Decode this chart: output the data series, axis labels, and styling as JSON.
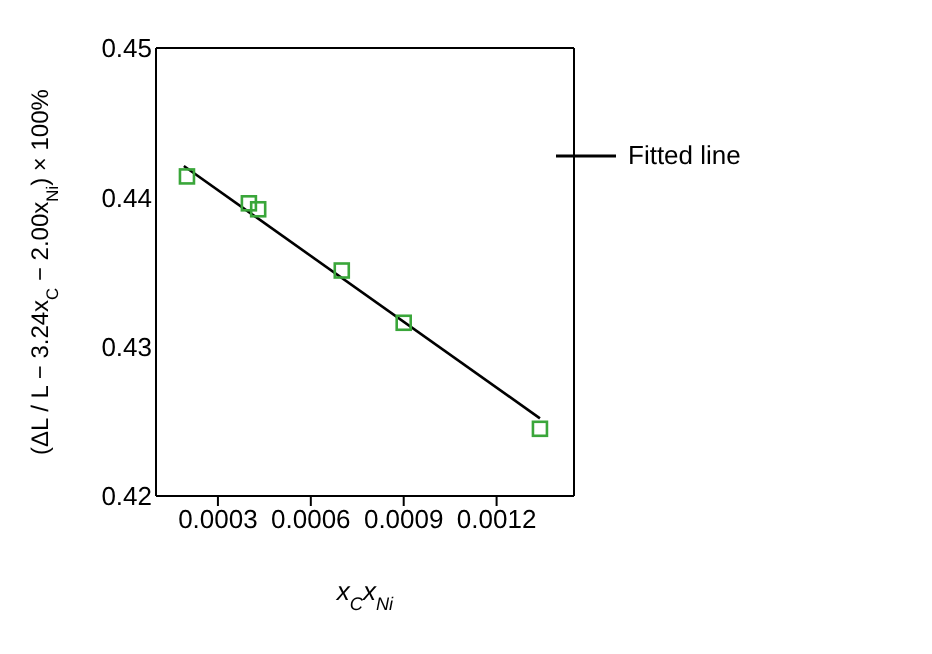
{
  "chart_data": {
    "type": "scatter",
    "xlabel": "x$_{C}$x$_{Ni}$",
    "ylabel": "(ΔL / L − 3.24x$_{C}$ − 2.00x$_{Ni}$) × 100%",
    "xlim": [
      0.0001,
      0.00145
    ],
    "xticks": [
      0.0003,
      0.0006,
      0.0009,
      0.0012
    ],
    "ylim": [
      0.42,
      0.45
    ],
    "yticks": [
      0.42,
      0.43,
      0.44,
      0.45
    ],
    "grid": false,
    "legend": "top right",
    "series": [
      {
        "color": "#3aa63a",
        "marker": "square",
        "x": [
          0.0002,
          0.0004,
          0.00043,
          0.0007,
          0.0009,
          0.00134
        ],
        "values": [
          0.4414,
          0.4396,
          0.4392,
          0.4351,
          0.4316,
          0.4245
        ]
      },
      {
        "type": "line",
        "name": "Fitted line",
        "color": "#000000",
        "marker": "none",
        "line_style": "solid",
        "x": [
          0.00019,
          0.00134
        ],
        "values": [
          0.4421,
          0.4252
        ]
      }
    ]
  }
}
